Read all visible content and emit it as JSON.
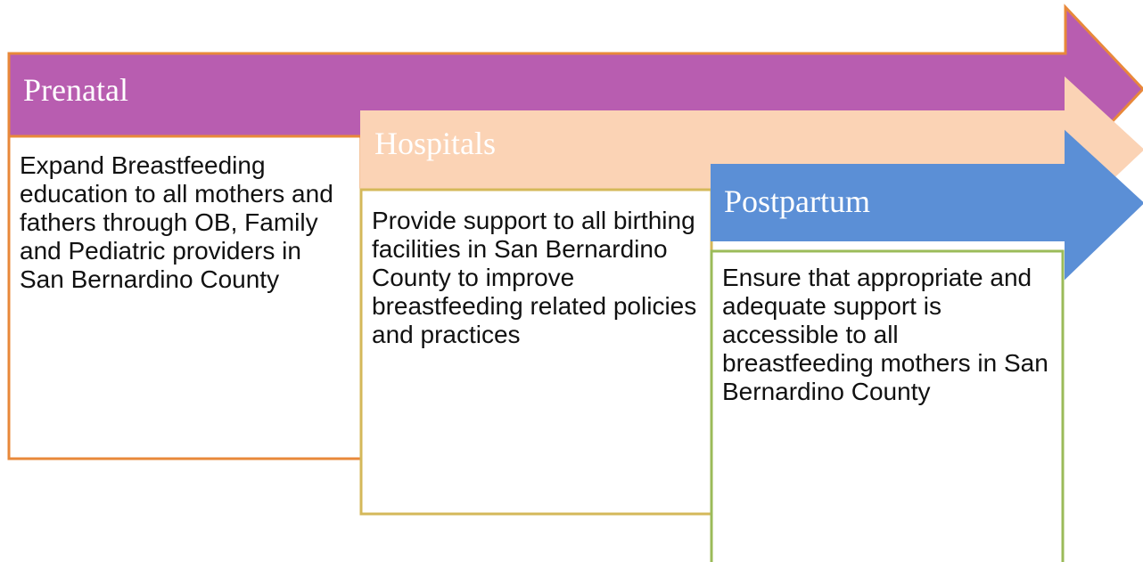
{
  "stages": [
    {
      "title": "Prenatal",
      "text": "Expand Breastfeeding education to all mothers and fathers through OB, Family and Pediatric providers in San Bernardino County"
    },
    {
      "title": "Hospitals",
      "text": "Provide support to all birthing facilities in San Bernardino County to improve breastfeeding related policies and practices"
    },
    {
      "title": "Postpartum",
      "text": "Ensure that appropriate and adequate support is accessible to all breastfeeding mothers in San Bernardino County"
    }
  ]
}
